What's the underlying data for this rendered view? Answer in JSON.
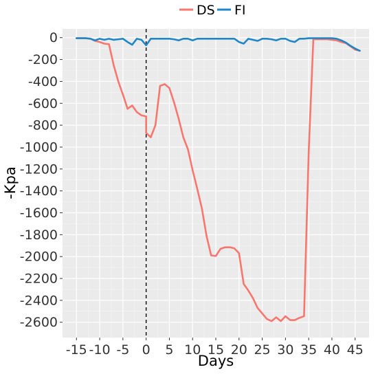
{
  "chart_data": {
    "type": "line",
    "title": "",
    "xlabel": "Days",
    "ylabel": "-Kpa",
    "xlim": [
      -18,
      48
    ],
    "ylim": [
      -2740,
      80
    ],
    "x_ticks": [
      -15,
      -10,
      -5,
      0,
      5,
      10,
      15,
      20,
      25,
      30,
      35,
      40,
      45
    ],
    "y_ticks": [
      0,
      -200,
      -400,
      -600,
      -800,
      -1000,
      -1200,
      -1400,
      -1600,
      -1800,
      -2000,
      -2200,
      -2400,
      -2600
    ],
    "grid": true,
    "legend_position": "top",
    "vline": {
      "x": 0,
      "style": "dashed"
    },
    "series": [
      {
        "name": "DS",
        "color": "#F8766D",
        "points": [
          [
            -15,
            -5
          ],
          [
            -14,
            -5
          ],
          [
            -13,
            -5
          ],
          [
            -12,
            -10
          ],
          [
            -11,
            -30
          ],
          [
            -10,
            -40
          ],
          [
            -9,
            -55
          ],
          [
            -8,
            -60
          ],
          [
            -7,
            -250
          ],
          [
            -6,
            -400
          ],
          [
            -5,
            -520
          ],
          [
            -4,
            -650
          ],
          [
            -3,
            -620
          ],
          [
            -2,
            -680
          ],
          [
            -1,
            -710
          ],
          [
            0,
            -720
          ],
          [
            0,
            -870
          ],
          [
            1,
            -910
          ],
          [
            2,
            -800
          ],
          [
            3,
            -440
          ],
          [
            4,
            -425
          ],
          [
            5,
            -460
          ],
          [
            6,
            -590
          ],
          [
            7,
            -740
          ],
          [
            8,
            -910
          ],
          [
            9,
            -1020
          ],
          [
            10,
            -1210
          ],
          [
            11,
            -1380
          ],
          [
            12,
            -1560
          ],
          [
            13,
            -1810
          ],
          [
            14,
            -1990
          ],
          [
            15,
            -1995
          ],
          [
            16,
            -1930
          ],
          [
            17,
            -1915
          ],
          [
            18,
            -1915
          ],
          [
            19,
            -1925
          ],
          [
            20,
            -1970
          ],
          [
            21,
            -2250
          ],
          [
            22,
            -2310
          ],
          [
            23,
            -2380
          ],
          [
            24,
            -2470
          ],
          [
            25,
            -2520
          ],
          [
            26,
            -2570
          ],
          [
            27,
            -2590
          ],
          [
            28,
            -2555
          ],
          [
            29,
            -2590
          ],
          [
            30,
            -2545
          ],
          [
            31,
            -2580
          ],
          [
            32,
            -2580
          ],
          [
            33,
            -2560
          ],
          [
            34,
            -2545
          ],
          [
            35,
            -1050
          ],
          [
            36,
            -15
          ],
          [
            37,
            -15
          ],
          [
            38,
            -15
          ],
          [
            39,
            -15
          ],
          [
            40,
            -20
          ],
          [
            41,
            -25
          ],
          [
            42,
            -40
          ],
          [
            43,
            -50
          ],
          [
            44,
            -80
          ],
          [
            45,
            -110
          ],
          [
            46,
            -120
          ]
        ]
      },
      {
        "name": "FI",
        "color": "#1F86C8",
        "points": [
          [
            -15,
            -5
          ],
          [
            -14,
            -5
          ],
          [
            -13,
            -5
          ],
          [
            -12,
            -10
          ],
          [
            -11,
            -25
          ],
          [
            -10,
            -10
          ],
          [
            -9,
            -20
          ],
          [
            -8,
            -10
          ],
          [
            -7,
            -20
          ],
          [
            -6,
            -15
          ],
          [
            -5,
            -10
          ],
          [
            -4,
            -40
          ],
          [
            -3,
            -65
          ],
          [
            -2,
            -10
          ],
          [
            -1,
            -20
          ],
          [
            0,
            -70
          ],
          [
            1,
            -10
          ],
          [
            2,
            -10
          ],
          [
            3,
            -10
          ],
          [
            4,
            -10
          ],
          [
            5,
            -10
          ],
          [
            6,
            -15
          ],
          [
            7,
            -25
          ],
          [
            8,
            -10
          ],
          [
            9,
            -10
          ],
          [
            10,
            -25
          ],
          [
            11,
            -10
          ],
          [
            12,
            -10
          ],
          [
            13,
            -10
          ],
          [
            14,
            -10
          ],
          [
            15,
            -10
          ],
          [
            16,
            -10
          ],
          [
            17,
            -10
          ],
          [
            18,
            -10
          ],
          [
            19,
            -10
          ],
          [
            20,
            -40
          ],
          [
            21,
            -55
          ],
          [
            22,
            -10
          ],
          [
            23,
            -20
          ],
          [
            24,
            -30
          ],
          [
            25,
            -10
          ],
          [
            26,
            -10
          ],
          [
            27,
            -15
          ],
          [
            28,
            -25
          ],
          [
            29,
            -10
          ],
          [
            30,
            -10
          ],
          [
            31,
            -30
          ],
          [
            32,
            -40
          ],
          [
            33,
            -10
          ],
          [
            34,
            -10
          ],
          [
            35,
            -5
          ],
          [
            36,
            -5
          ],
          [
            37,
            -5
          ],
          [
            38,
            -5
          ],
          [
            39,
            -5
          ],
          [
            40,
            -5
          ],
          [
            41,
            -10
          ],
          [
            42,
            -25
          ],
          [
            43,
            -45
          ],
          [
            44,
            -75
          ],
          [
            45,
            -100
          ],
          [
            46,
            -120
          ]
        ]
      }
    ]
  }
}
